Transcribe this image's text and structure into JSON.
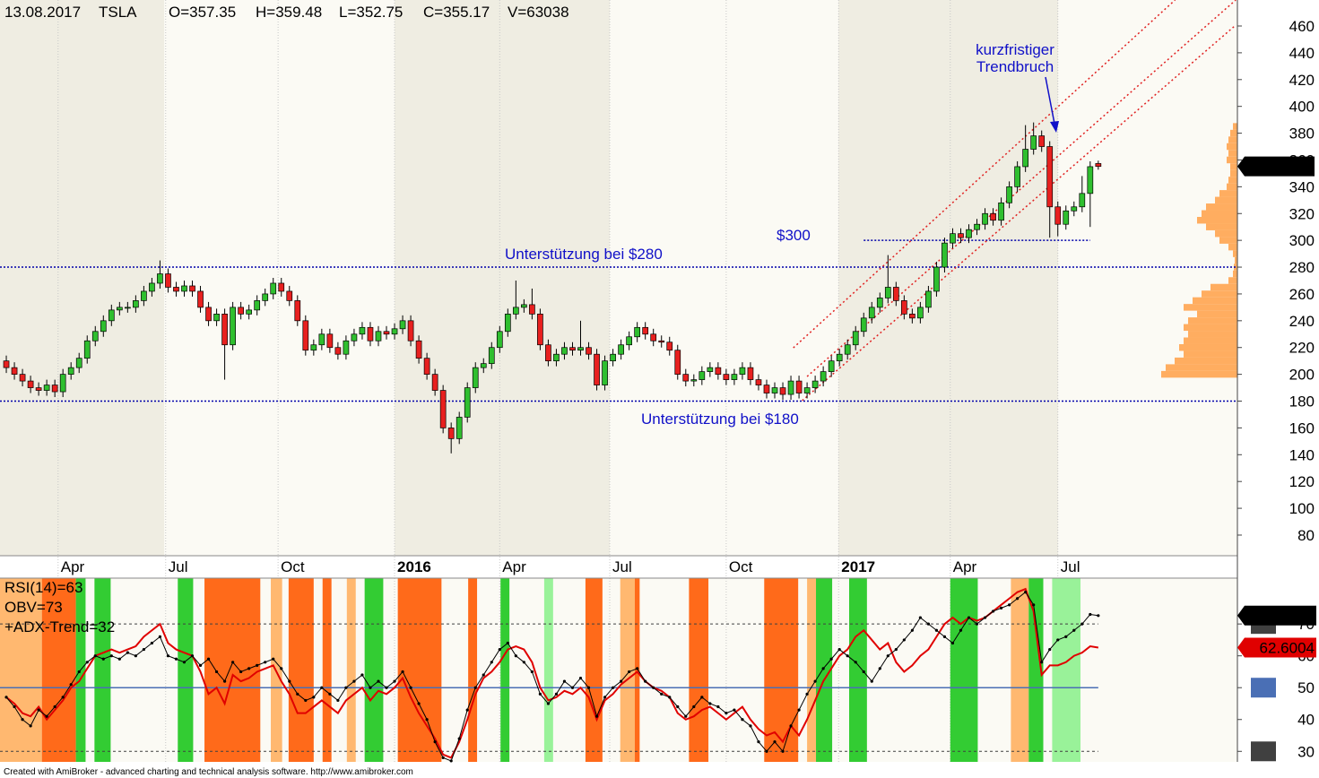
{
  "header": {
    "date": "13.08.2017",
    "symbol": "TSLA",
    "ohlc": [
      "O=357.35",
      "H=359.48",
      "L=352.75",
      "C=355.17",
      "V=63038"
    ]
  },
  "chart_data": [
    {
      "type": "candlestick",
      "open": [
        210,
        205,
        200,
        195,
        190,
        188,
        192,
        187,
        200,
        205,
        212,
        225,
        232,
        240,
        248,
        250,
        250,
        255,
        262,
        268,
        275,
        265,
        262,
        266,
        262,
        250,
        240,
        245,
        222,
        250,
        245,
        248,
        255,
        260,
        268,
        262,
        255,
        240,
        218,
        222,
        230,
        220,
        215,
        225,
        230,
        235,
        225,
        232,
        230,
        234,
        240,
        225,
        212,
        200,
        188,
        160,
        152,
        168,
        190,
        205,
        208,
        220,
        232,
        245,
        250,
        252,
        245,
        222,
        210,
        215,
        220,
        218,
        220,
        215,
        192,
        210,
        215,
        222,
        228,
        235,
        230,
        225,
        224,
        218,
        200,
        195,
        196,
        202,
        205,
        200,
        196,
        200,
        205,
        196,
        192,
        186,
        190,
        185,
        195,
        186,
        190,
        195,
        202,
        210,
        215,
        222,
        232,
        242,
        250,
        257,
        265,
        255,
        245,
        242,
        250,
        262,
        280,
        298,
        305,
        302,
        308,
        312,
        320,
        315,
        328,
        340,
        355,
        368,
        378,
        370,
        325,
        312,
        322,
        325,
        335,
        357.35
      ],
      "high": [
        214,
        209,
        204,
        199,
        194,
        196,
        196,
        204,
        209,
        216,
        229,
        236,
        244,
        252,
        254,
        254,
        259,
        266,
        272,
        285,
        279,
        269,
        270,
        270,
        266,
        254,
        249,
        249,
        254,
        254,
        252,
        259,
        264,
        272,
        272,
        266,
        259,
        244,
        226,
        234,
        234,
        224,
        229,
        234,
        239,
        239,
        236,
        236,
        238,
        244,
        244,
        229,
        216,
        204,
        192,
        164,
        172,
        194,
        209,
        212,
        224,
        236,
        249,
        270,
        256,
        264,
        249,
        226,
        219,
        224,
        224,
        240,
        224,
        219,
        214,
        219,
        226,
        232,
        239,
        239,
        234,
        229,
        228,
        222,
        204,
        200,
        206,
        209,
        209,
        204,
        204,
        209,
        209,
        200,
        196,
        194,
        194,
        199,
        199,
        194,
        199,
        206,
        214,
        219,
        226,
        236,
        246,
        254,
        261,
        289,
        269,
        259,
        249,
        254,
        266,
        284,
        302,
        309,
        309,
        312,
        316,
        324,
        324,
        332,
        344,
        359,
        386,
        388,
        382,
        374,
        329,
        326,
        329,
        348,
        359,
        359.48
      ],
      "low": [
        201,
        196,
        191,
        186,
        184,
        184,
        183,
        183,
        196,
        201,
        208,
        221,
        228,
        236,
        244,
        246,
        246,
        251,
        258,
        264,
        261,
        258,
        258,
        258,
        246,
        236,
        236,
        196,
        218,
        241,
        241,
        244,
        251,
        256,
        258,
        251,
        236,
        214,
        214,
        218,
        216,
        211,
        211,
        221,
        226,
        221,
        221,
        226,
        226,
        230,
        221,
        208,
        196,
        184,
        156,
        141,
        148,
        164,
        186,
        201,
        204,
        216,
        228,
        241,
        246,
        241,
        218,
        206,
        206,
        211,
        214,
        214,
        211,
        188,
        188,
        206,
        211,
        218,
        224,
        226,
        221,
        220,
        214,
        196,
        191,
        191,
        192,
        198,
        196,
        192,
        192,
        196,
        192,
        188,
        182,
        182,
        181,
        181,
        182,
        182,
        186,
        191,
        198,
        206,
        211,
        218,
        228,
        238,
        246,
        253,
        251,
        241,
        238,
        238,
        246,
        258,
        276,
        294,
        298,
        298,
        304,
        308,
        311,
        311,
        324,
        336,
        351,
        364,
        366,
        302,
        303,
        308,
        318,
        321,
        310,
        352.75
      ],
      "close": [
        205,
        200,
        195,
        190,
        188,
        192,
        187,
        200,
        205,
        212,
        225,
        232,
        240,
        248,
        250,
        250,
        255,
        262,
        268,
        275,
        265,
        262,
        266,
        262,
        250,
        240,
        245,
        222,
        250,
        245,
        248,
        255,
        260,
        268,
        262,
        255,
        240,
        218,
        222,
        230,
        220,
        215,
        225,
        230,
        235,
        225,
        232,
        230,
        234,
        240,
        225,
        212,
        200,
        188,
        160,
        152,
        168,
        190,
        205,
        208,
        220,
        232,
        245,
        250,
        252,
        245,
        222,
        210,
        215,
        220,
        218,
        220,
        215,
        192,
        210,
        215,
        222,
        228,
        235,
        230,
        225,
        224,
        218,
        200,
        195,
        196,
        202,
        205,
        200,
        196,
        200,
        205,
        196,
        192,
        186,
        190,
        185,
        195,
        186,
        190,
        195,
        202,
        210,
        215,
        222,
        232,
        242,
        250,
        257,
        265,
        255,
        245,
        242,
        250,
        262,
        280,
        298,
        305,
        302,
        308,
        312,
        320,
        315,
        328,
        340,
        355,
        368,
        378,
        370,
        325,
        312,
        322,
        325,
        335,
        355,
        355.17
      ],
      "up_color": "#2fbf2f",
      "down_color": "#e8201f",
      "xlim": [
        -0.78,
        152.2
      ],
      "xticks": [
        {
          "value": 6.4,
          "label": "Apr"
        },
        {
          "value": 19.7,
          "label": "Jul"
        },
        {
          "value": 33.6,
          "label": "Oct"
        },
        {
          "value": 48.0,
          "label": "2016"
        },
        {
          "value": 61.0,
          "label": "Apr"
        },
        {
          "value": 74.6,
          "label": "Jul"
        },
        {
          "value": 89.0,
          "label": "Oct"
        },
        {
          "value": 102.9,
          "label": "2017"
        },
        {
          "value": 116.7,
          "label": "Apr"
        },
        {
          "value": 130.0,
          "label": "Jul"
        }
      ],
      "ylim": [
        64.6,
        479.4
      ],
      "yticks": [
        80,
        100,
        120,
        140,
        160,
        180,
        200,
        220,
        240,
        260,
        280,
        300,
        320,
        340,
        360,
        380,
        400,
        420,
        440,
        460
      ],
      "hlines": [
        {
          "y": 280,
          "color": "#0000aa"
        },
        {
          "y": 180,
          "color": "#0000aa"
        },
        {
          "y": 300,
          "x": [
            106,
            134
          ],
          "color": "#0000aa"
        }
      ],
      "trendlines": [
        {
          "x": [
            97.3,
            144.5
          ],
          "y": [
            219.8,
            479.4
          ],
          "color": "#e02020"
        },
        {
          "x": [
            99.0,
            152.0
          ],
          "y": [
            198.4,
            479.4
          ],
          "color": "#e02020"
        },
        {
          "x": [
            98.4,
            152.0
          ],
          "y": [
            180.4,
            460.7
          ],
          "color": "#e02020"
        }
      ],
      "annotations": [
        "Unterstützung bei $280",
        "$300",
        "Unterstützung bei $180",
        "kurzfristiger",
        "Trendbruch"
      ],
      "volume_profile": {
        "color": "#ffad60",
        "prices": [
          200,
          205,
          210,
          215,
          220,
          225,
          230,
          235,
          240,
          245,
          250,
          255,
          260,
          265,
          270,
          275,
          280,
          285,
          290,
          295,
          300,
          305,
          310,
          315,
          320,
          325,
          330,
          335,
          340,
          345,
          350,
          355,
          360,
          365,
          370,
          375,
          380,
          385
        ],
        "values": [
          85,
          80,
          70,
          60,
          65,
          60,
          55,
          60,
          55,
          45,
          60,
          50,
          40,
          30,
          10,
          5,
          4,
          3,
          5,
          10,
          20,
          25,
          35,
          45,
          40,
          35,
          25,
          20,
          12,
          10,
          8,
          8,
          12,
          10,
          12,
          10,
          8,
          5
        ]
      }
    },
    {
      "type": "line",
      "series": [
        {
          "name": "RSI(14)=63",
          "color": "#e00000",
          "values": [
            47,
            45,
            42,
            41,
            44,
            40,
            43,
            46,
            50,
            52,
            56,
            60,
            61,
            62,
            61,
            62,
            63,
            66,
            68,
            70,
            64,
            62,
            61,
            60,
            55,
            48,
            50,
            45,
            54,
            52,
            53,
            55,
            56,
            57,
            52,
            48,
            42,
            42,
            44,
            46,
            44,
            42,
            46,
            48,
            50,
            46,
            49,
            48,
            50,
            53,
            47,
            42,
            38,
            34,
            29,
            28,
            33,
            40,
            48,
            53,
            55,
            58,
            62,
            63,
            62,
            58,
            50,
            46,
            47,
            49,
            48,
            50,
            47,
            40,
            46,
            48,
            51,
            53,
            55,
            52,
            50,
            49,
            47,
            42,
            40,
            41,
            43,
            44,
            42,
            40,
            42,
            44,
            40,
            37,
            35,
            36,
            33,
            38,
            35,
            40,
            46,
            52,
            56,
            60,
            62,
            66,
            68,
            65,
            62,
            64,
            58,
            55,
            57,
            60,
            62,
            66,
            70,
            72,
            70,
            72,
            71,
            72,
            74,
            76,
            78,
            80,
            81,
            74,
            54,
            57,
            57,
            58,
            60,
            61,
            63,
            62.6004
          ]
        },
        {
          "name": "OBV=73",
          "color": "#000000",
          "markers": true,
          "values": [
            47,
            44,
            40,
            38,
            43,
            41,
            44,
            47,
            51,
            55,
            58,
            60,
            59,
            60,
            59,
            61,
            60,
            62,
            64,
            66,
            60,
            59,
            58,
            60,
            57,
            59,
            55,
            52,
            58,
            55,
            56,
            57,
            58,
            59,
            56,
            52,
            48,
            46,
            47,
            50,
            48,
            46,
            50,
            52,
            54,
            50,
            52,
            50,
            52,
            55,
            50,
            45,
            40,
            33,
            28,
            27,
            34,
            43,
            50,
            54,
            58,
            62,
            64,
            60,
            58,
            55,
            48,
            45,
            48,
            52,
            50,
            53,
            50,
            41,
            47,
            50,
            52,
            55,
            56,
            52,
            50,
            48,
            47,
            44,
            41,
            44,
            47,
            45,
            44,
            42,
            43,
            40,
            38,
            33,
            30,
            33,
            30,
            38,
            43,
            48,
            52,
            56,
            59,
            62,
            60,
            58,
            55,
            52,
            56,
            60,
            62,
            65,
            68,
            72,
            70,
            68,
            66,
            64,
            68,
            72,
            70,
            72,
            74,
            75,
            76,
            78,
            80,
            76,
            58,
            62,
            65,
            66,
            68,
            70,
            73,
            72.6342
          ]
        }
      ],
      "bands": {
        "name": "+ADX-Trend=32",
        "segments": [
          {
            "from": -0.8,
            "to": 4.4,
            "color": "#ffb870"
          },
          {
            "from": 4.4,
            "to": 8.6,
            "color": "#ff6a1a"
          },
          {
            "from": 8.6,
            "to": 9.8,
            "color": "#33cc33"
          },
          {
            "from": 10.9,
            "to": 12.9,
            "color": "#33cc33"
          },
          {
            "from": 21.2,
            "to": 23.1,
            "color": "#33cc33"
          },
          {
            "from": 24.5,
            "to": 31.4,
            "color": "#ff6a1a"
          },
          {
            "from": 32.7,
            "to": 34.1,
            "color": "#ffb870"
          },
          {
            "from": 34.9,
            "to": 38.0,
            "color": "#ff6a1a"
          },
          {
            "from": 39.1,
            "to": 40.2,
            "color": "#ff6a1a"
          },
          {
            "from": 42.1,
            "to": 43.2,
            "color": "#ffb870"
          },
          {
            "from": 44.3,
            "to": 46.6,
            "color": "#33cc33"
          },
          {
            "from": 48.4,
            "to": 53.8,
            "color": "#ff6a1a"
          },
          {
            "from": 57.1,
            "to": 58.2,
            "color": "#ff6a1a"
          },
          {
            "from": 61.1,
            "to": 62.2,
            "color": "#33cc33"
          },
          {
            "from": 66.5,
            "to": 67.6,
            "color": "#99f299"
          },
          {
            "from": 71.6,
            "to": 73.7,
            "color": "#ff6a1a"
          },
          {
            "from": 75.9,
            "to": 77.7,
            "color": "#ffb870"
          },
          {
            "from": 77.7,
            "to": 78.3,
            "color": "#ff6a1a"
          },
          {
            "from": 84.4,
            "to": 86.8,
            "color": "#ff6a1a"
          },
          {
            "from": 93.7,
            "to": 97.9,
            "color": "#ff6a1a"
          },
          {
            "from": 99.0,
            "to": 100.1,
            "color": "#ffb870"
          },
          {
            "from": 100.1,
            "to": 102.1,
            "color": "#33cc33"
          },
          {
            "from": 104.2,
            "to": 106.4,
            "color": "#33cc33"
          },
          {
            "from": 116.7,
            "to": 120.1,
            "color": "#33cc33"
          },
          {
            "from": 124.2,
            "to": 126.4,
            "color": "#ffb870"
          },
          {
            "from": 126.4,
            "to": 128.2,
            "color": "#33cc33"
          },
          {
            "from": 129.3,
            "to": 132.8,
            "color": "#99f299"
          }
        ]
      },
      "xlim": [
        -0.78,
        152.2
      ],
      "ylim": [
        26.7,
        84.4
      ],
      "yticks": [
        30,
        40,
        50,
        60,
        70
      ],
      "hlines": [
        {
          "y": 70,
          "color": "#404040",
          "style": "dotted"
        },
        {
          "y": 50,
          "color": "#4a6fb5"
        },
        {
          "y": 30,
          "color": "#404040",
          "style": "dotted"
        }
      ]
    }
  ],
  "footer": "Created with AmiBroker - advanced charting and technical analysis software. http://www.amibroker.com"
}
